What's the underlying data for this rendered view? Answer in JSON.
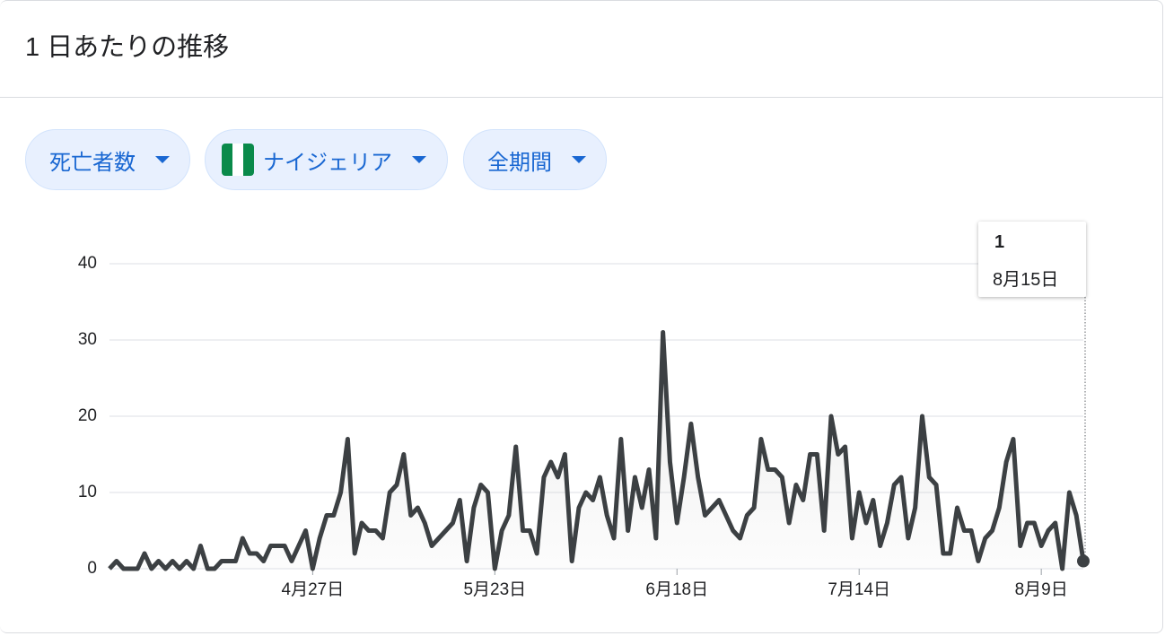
{
  "header_title": "1 日あたりの推移",
  "filters": [
    "死亡者数",
    "ナイジェリア",
    "全期間"
  ],
  "chart_data": {
    "type": "line",
    "color": "#3c4043",
    "categories": [
      null,
      null,
      null,
      null,
      null,
      null,
      null,
      null,
      null,
      null,
      null,
      null,
      null,
      null,
      null,
      null,
      null,
      null,
      null,
      null,
      null,
      null,
      null,
      null,
      null,
      null,
      null,
      null,
      null,
      "4月27日",
      null,
      null,
      null,
      null,
      null,
      null,
      null,
      null,
      null,
      null,
      null,
      null,
      null,
      null,
      null,
      null,
      null,
      null,
      null,
      null,
      null,
      null,
      null,
      null,
      null,
      "5月23日",
      null,
      null,
      null,
      null,
      null,
      null,
      null,
      null,
      null,
      null,
      null,
      null,
      null,
      null,
      null,
      null,
      null,
      null,
      null,
      null,
      null,
      null,
      null,
      null,
      null,
      "6月18日",
      null,
      null,
      null,
      null,
      null,
      null,
      null,
      null,
      null,
      null,
      null,
      null,
      null,
      null,
      null,
      null,
      null,
      null,
      null,
      null,
      null,
      null,
      null,
      null,
      null,
      "7月14日",
      null,
      null,
      null,
      null,
      null,
      null,
      null,
      null,
      null,
      null,
      null,
      null,
      null,
      null,
      null,
      null,
      null,
      null,
      null,
      null,
      null,
      null,
      null,
      null,
      null,
      "8月9日",
      null,
      null,
      null,
      null,
      null,
      "8月15日"
    ],
    "values": [
      0,
      1,
      0,
      0,
      0,
      2,
      0,
      1,
      0,
      1,
      0,
      1,
      0,
      3,
      0,
      0,
      1,
      1,
      1,
      4,
      2,
      2,
      1,
      3,
      3,
      3,
      1,
      3,
      5,
      0,
      4,
      7,
      7,
      10,
      17,
      2,
      6,
      5,
      5,
      4,
      10,
      11,
      15,
      7,
      8,
      6,
      3,
      4,
      5,
      6,
      9,
      1,
      8,
      11,
      10,
      0,
      5,
      7,
      16,
      5,
      5,
      2,
      12,
      14,
      12,
      15,
      1,
      8,
      10,
      9,
      12,
      7,
      4,
      17,
      5,
      12,
      8,
      13,
      4,
      31,
      14,
      6,
      12,
      19,
      12,
      7,
      8,
      9,
      7,
      5,
      4,
      7,
      8,
      17,
      13,
      13,
      12,
      6,
      11,
      9,
      15,
      15,
      5,
      20,
      15,
      16,
      4,
      10,
      6,
      9,
      3,
      6,
      11,
      12,
      4,
      8,
      20,
      12,
      11,
      2,
      2,
      8,
      5,
      5,
      1,
      4,
      5,
      8,
      14,
      17,
      3,
      6,
      6,
      3,
      5,
      6,
      0,
      10,
      7,
      1
    ],
    "ylim": [
      0,
      40
    ],
    "yticks": [
      0,
      10,
      20,
      30,
      40
    ],
    "grid": true
  }
}
